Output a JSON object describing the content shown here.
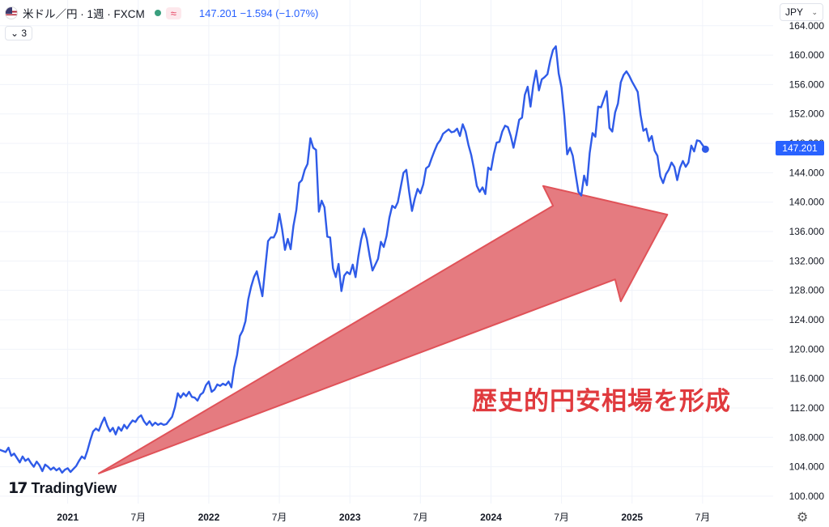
{
  "header": {
    "symbol": "米ドル／円 · 1週 · FXCM",
    "approx": "≈",
    "price_info": "147.201  −1.594 (−1.07%)",
    "indicator": "⌄ 3",
    "currency": "JPY"
  },
  "price_tag": "147.201",
  "brand": {
    "mark": "17",
    "name": "TradingView"
  },
  "annotation": "歴史的円安相場を形成",
  "colors": {
    "line": "#2f5be8",
    "arrow_fill": "#e57b80",
    "arrow_stroke": "#e05258",
    "accent": "#2962ff",
    "text_red": "#e03a3e"
  },
  "icons": {
    "settings": "gear-icon",
    "dropdown": "chevron-down-icon",
    "flag": "us-jp-flag-icon"
  },
  "chart_data": {
    "type": "line",
    "y_ticks": [
      "164.000",
      "160.000",
      "156.000",
      "152.000",
      "148.000",
      "144.000",
      "140.000",
      "136.000",
      "132.000",
      "128.000",
      "124.000",
      "120.000",
      "116.000",
      "112.000",
      "108.000",
      "104.000",
      "100.000"
    ],
    "y_tick_values": [
      164,
      160,
      156,
      152,
      148,
      144,
      140,
      136,
      132,
      128,
      124,
      120,
      116,
      112,
      108,
      104,
      100
    ],
    "ylim": [
      99,
      167.5
    ],
    "x_ticks": [
      {
        "label": "2021",
        "t": 2021.0,
        "bold": true
      },
      {
        "label": "7月",
        "t": 2021.5,
        "bold": false
      },
      {
        "label": "2022",
        "t": 2022.0,
        "bold": true
      },
      {
        "label": "7月",
        "t": 2022.5,
        "bold": false
      },
      {
        "label": "2023",
        "t": 2023.0,
        "bold": true
      },
      {
        "label": "7月",
        "t": 2023.5,
        "bold": false
      },
      {
        "label": "2024",
        "t": 2024.0,
        "bold": true
      },
      {
        "label": "7月",
        "t": 2024.5,
        "bold": false
      },
      {
        "label": "2025",
        "t": 2025.0,
        "bold": true
      },
      {
        "label": "7月",
        "t": 2025.5,
        "bold": false
      }
    ],
    "xlim": [
      2020.52,
      2026.0
    ],
    "last_value": 147.201,
    "series": [
      {
        "values": [
          [
            2020.52,
            106.3
          ],
          [
            2020.56,
            106.0
          ],
          [
            2020.58,
            106.6
          ],
          [
            2020.6,
            105.5
          ],
          [
            2020.62,
            105.8
          ],
          [
            2020.64,
            105.2
          ],
          [
            2020.66,
            104.6
          ],
          [
            2020.68,
            105.4
          ],
          [
            2020.7,
            104.8
          ],
          [
            2020.72,
            105.1
          ],
          [
            2020.74,
            104.5
          ],
          [
            2020.76,
            104.0
          ],
          [
            2020.78,
            104.7
          ],
          [
            2020.8,
            104.2
          ],
          [
            2020.82,
            103.4
          ],
          [
            2020.84,
            104.3
          ],
          [
            2020.86,
            104.0
          ],
          [
            2020.88,
            103.6
          ],
          [
            2020.9,
            103.9
          ],
          [
            2020.92,
            103.5
          ],
          [
            2020.94,
            103.8
          ],
          [
            2020.96,
            103.2
          ],
          [
            2020.98,
            103.6
          ],
          [
            2021.0,
            103.8
          ],
          [
            2021.02,
            103.3
          ],
          [
            2021.04,
            103.7
          ],
          [
            2021.06,
            104.1
          ],
          [
            2021.08,
            104.8
          ],
          [
            2021.1,
            105.4
          ],
          [
            2021.12,
            105.1
          ],
          [
            2021.14,
            106.2
          ],
          [
            2021.16,
            107.6
          ],
          [
            2021.18,
            108.8
          ],
          [
            2021.2,
            109.2
          ],
          [
            2021.22,
            108.9
          ],
          [
            2021.24,
            109.9
          ],
          [
            2021.26,
            110.7
          ],
          [
            2021.28,
            109.6
          ],
          [
            2021.3,
            108.8
          ],
          [
            2021.32,
            109.3
          ],
          [
            2021.34,
            108.4
          ],
          [
            2021.36,
            109.4
          ],
          [
            2021.38,
            108.9
          ],
          [
            2021.4,
            109.7
          ],
          [
            2021.42,
            109.2
          ],
          [
            2021.44,
            109.8
          ],
          [
            2021.46,
            110.3
          ],
          [
            2021.48,
            110.1
          ],
          [
            2021.5,
            110.7
          ],
          [
            2021.52,
            111.0
          ],
          [
            2021.54,
            110.2
          ],
          [
            2021.56,
            109.7
          ],
          [
            2021.58,
            110.2
          ],
          [
            2021.6,
            109.6
          ],
          [
            2021.62,
            110.0
          ],
          [
            2021.64,
            109.7
          ],
          [
            2021.66,
            109.9
          ],
          [
            2021.68,
            109.7
          ],
          [
            2021.7,
            109.8
          ],
          [
            2021.72,
            110.3
          ],
          [
            2021.74,
            110.8
          ],
          [
            2021.76,
            112.1
          ],
          [
            2021.78,
            114.0
          ],
          [
            2021.8,
            113.4
          ],
          [
            2021.82,
            114.0
          ],
          [
            2021.84,
            113.6
          ],
          [
            2021.86,
            114.2
          ],
          [
            2021.88,
            113.5
          ],
          [
            2021.9,
            113.4
          ],
          [
            2021.92,
            113.0
          ],
          [
            2021.94,
            113.8
          ],
          [
            2021.96,
            114.1
          ],
          [
            2021.98,
            115.1
          ],
          [
            2022.0,
            115.6
          ],
          [
            2022.02,
            114.2
          ],
          [
            2022.04,
            114.5
          ],
          [
            2022.06,
            115.2
          ],
          [
            2022.08,
            115.0
          ],
          [
            2022.1,
            115.3
          ],
          [
            2022.12,
            115.1
          ],
          [
            2022.14,
            115.6
          ],
          [
            2022.16,
            114.8
          ],
          [
            2022.18,
            117.5
          ],
          [
            2022.2,
            119.2
          ],
          [
            2022.22,
            121.8
          ],
          [
            2022.24,
            122.5
          ],
          [
            2022.26,
            123.8
          ],
          [
            2022.28,
            126.8
          ],
          [
            2022.3,
            128.5
          ],
          [
            2022.32,
            129.8
          ],
          [
            2022.34,
            130.6
          ],
          [
            2022.36,
            128.9
          ],
          [
            2022.38,
            127.2
          ],
          [
            2022.4,
            131.0
          ],
          [
            2022.42,
            134.7
          ],
          [
            2022.44,
            135.2
          ],
          [
            2022.46,
            135.2
          ],
          [
            2022.48,
            136.0
          ],
          [
            2022.5,
            138.4
          ],
          [
            2022.52,
            136.3
          ],
          [
            2022.54,
            133.5
          ],
          [
            2022.56,
            135.0
          ],
          [
            2022.58,
            133.6
          ],
          [
            2022.6,
            136.8
          ],
          [
            2022.62,
            138.9
          ],
          [
            2022.64,
            142.6
          ],
          [
            2022.66,
            143.0
          ],
          [
            2022.68,
            144.4
          ],
          [
            2022.7,
            145.2
          ],
          [
            2022.72,
            148.7
          ],
          [
            2022.74,
            147.4
          ],
          [
            2022.76,
            147.1
          ],
          [
            2022.78,
            138.7
          ],
          [
            2022.8,
            140.2
          ],
          [
            2022.82,
            139.3
          ],
          [
            2022.84,
            135.3
          ],
          [
            2022.86,
            135.2
          ],
          [
            2022.88,
            131.0
          ],
          [
            2022.9,
            129.8
          ],
          [
            2022.92,
            131.6
          ],
          [
            2022.94,
            127.9
          ],
          [
            2022.96,
            130.0
          ],
          [
            2022.98,
            130.5
          ],
          [
            2023.0,
            130.2
          ],
          [
            2023.02,
            131.5
          ],
          [
            2023.04,
            129.8
          ],
          [
            2023.06,
            132.6
          ],
          [
            2023.08,
            134.9
          ],
          [
            2023.1,
            136.4
          ],
          [
            2023.12,
            135.0
          ],
          [
            2023.14,
            132.7
          ],
          [
            2023.16,
            130.7
          ],
          [
            2023.18,
            131.5
          ],
          [
            2023.2,
            132.3
          ],
          [
            2023.22,
            134.6
          ],
          [
            2023.24,
            133.9
          ],
          [
            2023.26,
            135.4
          ],
          [
            2023.28,
            137.9
          ],
          [
            2023.3,
            139.5
          ],
          [
            2023.32,
            139.2
          ],
          [
            2023.34,
            140.0
          ],
          [
            2023.36,
            142.0
          ],
          [
            2023.38,
            144.0
          ],
          [
            2023.4,
            144.4
          ],
          [
            2023.42,
            141.4
          ],
          [
            2023.44,
            138.8
          ],
          [
            2023.46,
            140.5
          ],
          [
            2023.48,
            141.8
          ],
          [
            2023.5,
            141.2
          ],
          [
            2023.52,
            142.4
          ],
          [
            2023.54,
            144.6
          ],
          [
            2023.56,
            144.9
          ],
          [
            2023.58,
            146.0
          ],
          [
            2023.6,
            147.0
          ],
          [
            2023.62,
            147.9
          ],
          [
            2023.64,
            148.4
          ],
          [
            2023.66,
            149.3
          ],
          [
            2023.68,
            149.6
          ],
          [
            2023.7,
            149.9
          ],
          [
            2023.72,
            149.5
          ],
          [
            2023.74,
            149.6
          ],
          [
            2023.76,
            150.0
          ],
          [
            2023.78,
            149.0
          ],
          [
            2023.8,
            150.6
          ],
          [
            2023.82,
            149.6
          ],
          [
            2023.84,
            147.8
          ],
          [
            2023.86,
            146.4
          ],
          [
            2023.88,
            144.5
          ],
          [
            2023.9,
            142.2
          ],
          [
            2023.92,
            141.4
          ],
          [
            2023.94,
            142.0
          ],
          [
            2023.96,
            141.1
          ],
          [
            2023.98,
            144.7
          ],
          [
            2024.0,
            144.4
          ],
          [
            2024.02,
            146.5
          ],
          [
            2024.04,
            148.1
          ],
          [
            2024.06,
            148.2
          ],
          [
            2024.08,
            149.6
          ],
          [
            2024.1,
            150.4
          ],
          [
            2024.12,
            150.2
          ],
          [
            2024.14,
            149.0
          ],
          [
            2024.16,
            147.4
          ],
          [
            2024.18,
            149.2
          ],
          [
            2024.2,
            151.2
          ],
          [
            2024.22,
            151.5
          ],
          [
            2024.24,
            154.6
          ],
          [
            2024.26,
            155.7
          ],
          [
            2024.28,
            153.0
          ],
          [
            2024.3,
            155.9
          ],
          [
            2024.32,
            157.9
          ],
          [
            2024.34,
            155.2
          ],
          [
            2024.36,
            156.7
          ],
          [
            2024.38,
            157.0
          ],
          [
            2024.4,
            157.4
          ],
          [
            2024.42,
            159.3
          ],
          [
            2024.44,
            160.7
          ],
          [
            2024.46,
            161.2
          ],
          [
            2024.48,
            157.5
          ],
          [
            2024.5,
            155.6
          ],
          [
            2024.52,
            151.7
          ],
          [
            2024.54,
            146.5
          ],
          [
            2024.56,
            147.4
          ],
          [
            2024.58,
            146.3
          ],
          [
            2024.6,
            143.8
          ],
          [
            2024.62,
            141.4
          ],
          [
            2024.64,
            140.9
          ],
          [
            2024.66,
            143.6
          ],
          [
            2024.68,
            142.3
          ],
          [
            2024.7,
            146.7
          ],
          [
            2024.72,
            149.4
          ],
          [
            2024.74,
            148.9
          ],
          [
            2024.76,
            153.0
          ],
          [
            2024.78,
            152.9
          ],
          [
            2024.8,
            154.0
          ],
          [
            2024.82,
            155.1
          ],
          [
            2024.84,
            150.1
          ],
          [
            2024.86,
            149.6
          ],
          [
            2024.88,
            152.2
          ],
          [
            2024.9,
            153.4
          ],
          [
            2024.92,
            156.3
          ],
          [
            2024.94,
            157.3
          ],
          [
            2024.96,
            157.8
          ],
          [
            2024.98,
            157.2
          ],
          [
            2025.0,
            156.4
          ],
          [
            2025.02,
            155.7
          ],
          [
            2025.04,
            155.0
          ],
          [
            2025.06,
            151.9
          ],
          [
            2025.08,
            149.7
          ],
          [
            2025.1,
            150.0
          ],
          [
            2025.12,
            148.3
          ],
          [
            2025.14,
            149.0
          ],
          [
            2025.16,
            147.0
          ],
          [
            2025.18,
            146.3
          ],
          [
            2025.2,
            143.5
          ],
          [
            2025.22,
            142.6
          ],
          [
            2025.24,
            143.8
          ],
          [
            2025.26,
            144.4
          ],
          [
            2025.28,
            145.4
          ],
          [
            2025.3,
            144.8
          ],
          [
            2025.32,
            143.0
          ],
          [
            2025.34,
            144.7
          ],
          [
            2025.36,
            145.6
          ],
          [
            2025.38,
            144.8
          ],
          [
            2025.4,
            145.4
          ],
          [
            2025.42,
            147.7
          ],
          [
            2025.44,
            146.9
          ],
          [
            2025.46,
            148.4
          ],
          [
            2025.48,
            148.3
          ],
          [
            2025.52,
            147.2
          ]
        ]
      }
    ],
    "arrow_points": [
      [
        2021.22,
        103.1
      ],
      [
        2024.44,
        139.5
      ],
      [
        2024.37,
        142.2
      ],
      [
        2025.25,
        138.3
      ],
      [
        2024.92,
        126.5
      ],
      [
        2024.88,
        129.5
      ]
    ]
  }
}
